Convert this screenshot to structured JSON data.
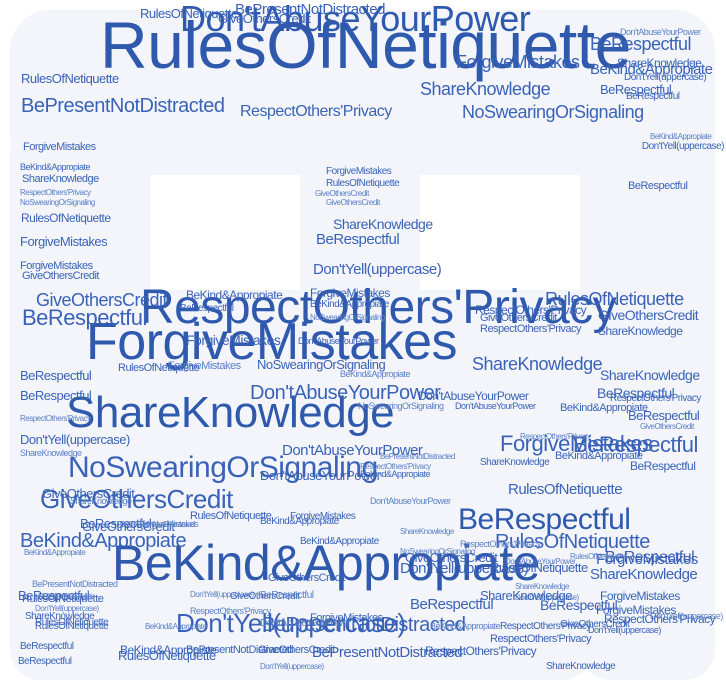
{
  "colors": {
    "background": "#ffffff",
    "silhouette": "#f3f5fb",
    "word_dark": "#2f59ad",
    "word_mid": "#3a63b8",
    "word_light": "#5a7fc6"
  },
  "icon": "handshake-silhouette-icon",
  "words": [
    {
      "id": "w1",
      "text": "RulesOfNetiquette"
    },
    {
      "id": "w2",
      "text": "RespectOthers'Privacy"
    },
    {
      "id": "w3",
      "text": "ForgiveMistakes"
    },
    {
      "id": "w4",
      "text": "BeKind&Appropiate"
    },
    {
      "id": "w5",
      "text": "ShareKnowledge"
    },
    {
      "id": "w6",
      "text": "Don'tAbuseYourPower"
    },
    {
      "id": "w7",
      "text": "NoSwearingOrSignaling"
    },
    {
      "id": "w8",
      "text": "GiveOthersCredit"
    },
    {
      "id": "w9",
      "text": "BeRespectful"
    },
    {
      "id": "w10",
      "text": "Don'tYell(uppercase)"
    },
    {
      "id": "w11",
      "text": "BePresentNotDistracted"
    },
    {
      "id": "w12",
      "text": "BePresentNotDistracted"
    },
    {
      "id": "w13",
      "text": "Don'tAbuseYourPower"
    },
    {
      "id": "w14",
      "text": "GiveOthersCredit"
    },
    {
      "id": "w15",
      "text": "BeKind&Appropiate"
    },
    {
      "id": "w16",
      "text": "RespectOthers'Privacy"
    },
    {
      "id": "w17",
      "text": "NoSwearingOrSignaling"
    },
    {
      "id": "w18",
      "text": "ForgiveMistakes"
    },
    {
      "id": "w19",
      "text": "ShareKnowledge"
    },
    {
      "id": "w20",
      "text": "RulesOfNetiquette"
    },
    {
      "id": "w21",
      "text": "BeRespectful"
    },
    {
      "id": "w22",
      "text": "RulesOfNetiquette"
    },
    {
      "id": "w23",
      "text": "RespectOthers'Privacy"
    },
    {
      "id": "w24",
      "text": "BeRespectful"
    },
    {
      "id": "w25",
      "text": "RulesOfNetiquette"
    },
    {
      "id": "w26",
      "text": "ForgiveMistakes"
    },
    {
      "id": "w27",
      "text": "ShareKnowledge"
    },
    {
      "id": "w28",
      "text": "BeRespectful"
    },
    {
      "id": "w29",
      "text": "GiveOthersCredit"
    },
    {
      "id": "w30",
      "text": "BeKind&Appropiate"
    },
    {
      "id": "w31",
      "text": "BePresentNotDistracted"
    },
    {
      "id": "w32",
      "text": "GiveOthersCredit"
    },
    {
      "id": "w33",
      "text": "Don'tAbuseYourPower"
    },
    {
      "id": "w34",
      "text": "BeRespectful"
    },
    {
      "id": "w35",
      "text": "ShareKnowledge"
    },
    {
      "id": "w36",
      "text": "Don'tYell(uppercase)"
    },
    {
      "id": "w37",
      "text": "RulesOfNetiquette"
    },
    {
      "id": "w38",
      "text": "ForgiveMistakes"
    },
    {
      "id": "w39",
      "text": "BeKind&Appropiate"
    },
    {
      "id": "w40",
      "text": "ShareKnowledge"
    },
    {
      "id": "w41",
      "text": "RulesOfNetiquette"
    },
    {
      "id": "w42",
      "text": "Don'tYell(uppercase)"
    },
    {
      "id": "w43",
      "text": "BeKind&Appropiate"
    },
    {
      "id": "w44",
      "text": "RespectOthers'Privacy"
    },
    {
      "id": "w45",
      "text": "ForgiveMistakes"
    },
    {
      "id": "w46",
      "text": "NoSwearingOrSignaling"
    },
    {
      "id": "w47",
      "text": "GiveOthersCredit"
    },
    {
      "id": "w48",
      "text": "ForgiveMistakes"
    },
    {
      "id": "w49",
      "text": "RulesOfNetiquette"
    },
    {
      "id": "w50",
      "text": "ShareKnowledge"
    },
    {
      "id": "w51",
      "text": "BeRespectful"
    },
    {
      "id": "w52",
      "text": "GiveOthersCredit"
    },
    {
      "id": "w53",
      "text": "Don'tYell(uppercase)"
    },
    {
      "id": "w54",
      "text": "BeRespectful"
    },
    {
      "id": "w55",
      "text": "Don'tAbuseYourPower"
    },
    {
      "id": "w56",
      "text": "BeKind&Appropiate"
    },
    {
      "id": "w57",
      "text": "RespectOthers'Privacy"
    },
    {
      "id": "w58",
      "text": "ShareKnowledge"
    },
    {
      "id": "w59",
      "text": "BeRespectful"
    },
    {
      "id": "w60",
      "text": "BeRespectful"
    },
    {
      "id": "w61",
      "text": "BeKind&Appropiate"
    },
    {
      "id": "w62",
      "text": "GiveOthersCredit"
    },
    {
      "id": "w63",
      "text": "BePresentNotDistracted"
    },
    {
      "id": "w64",
      "text": "RulesOfNetiquette"
    },
    {
      "id": "w65",
      "text": "BeRespectful"
    },
    {
      "id": "w66",
      "text": "ForgiveMistakes"
    },
    {
      "id": "w67",
      "text": "ShareKnowledge"
    },
    {
      "id": "w68",
      "text": "GiveOthersCredit"
    },
    {
      "id": "w69",
      "text": "NoSwearingOrSignaling"
    },
    {
      "id": "w70",
      "text": "Don'tAbuseYourPower"
    },
    {
      "id": "w71",
      "text": "RulesOfNetiquette"
    },
    {
      "id": "w72",
      "text": "BeKind&Appropiate"
    },
    {
      "id": "w73",
      "text": "GiveOthersCredit"
    },
    {
      "id": "w74",
      "text": "Don'tYell(uppercase)"
    },
    {
      "id": "w75",
      "text": "ShareKnowledge"
    },
    {
      "id": "w76",
      "text": "BeRespectful"
    },
    {
      "id": "w77",
      "text": "ForgiveMistakes"
    },
    {
      "id": "w78",
      "text": "RespectOthers'Privacy"
    },
    {
      "id": "w79",
      "text": "Don'tYell(uppercase)"
    },
    {
      "id": "w80",
      "text": "Don'tYell(uppercase)"
    },
    {
      "id": "w81",
      "text": "ShareKnowledge"
    },
    {
      "id": "w82",
      "text": "RulesOfNetiquette"
    },
    {
      "id": "w83",
      "text": "Don'tAbuseYourPower"
    },
    {
      "id": "w84",
      "text": "BeKind&Appropiate"
    },
    {
      "id": "w85",
      "text": "ForgiveMistakes"
    },
    {
      "id": "w86",
      "text": "BeRespectful"
    },
    {
      "id": "w87",
      "text": "ShareKnowledge"
    },
    {
      "id": "w88",
      "text": "BeRespectful"
    },
    {
      "id": "w89",
      "text": "ForgiveMistakes"
    },
    {
      "id": "w90",
      "text": "Don'tAbuseYourPower"
    },
    {
      "id": "w91",
      "text": "RespectOthers'Privacy"
    },
    {
      "id": "w92",
      "text": "BeKind&Appropiate"
    },
    {
      "id": "w93",
      "text": "RulesOfNetiquette"
    },
    {
      "id": "w94",
      "text": "Don'tAbuseYourPower"
    },
    {
      "id": "w95",
      "text": "BeRespectful"
    },
    {
      "id": "w96",
      "text": "ForgiveMistakes"
    },
    {
      "id": "w97",
      "text": "BeKind&Appropiate"
    },
    {
      "id": "w98",
      "text": "GiveOthersCredit"
    },
    {
      "id": "w99",
      "text": "RespectOthers'Privacy"
    },
    {
      "id": "w100",
      "text": "BeKind&Appropiate"
    },
    {
      "id": "w101",
      "text": "NoSwearingOrSignaling"
    },
    {
      "id": "w102",
      "text": "ShareKnowledge"
    },
    {
      "id": "w103",
      "text": "BeRespectful"
    },
    {
      "id": "w104",
      "text": "GiveOthersCredit"
    },
    {
      "id": "w105",
      "text": "RespectOthers'Privacy"
    },
    {
      "id": "w106",
      "text": "ForgiveMistakes"
    },
    {
      "id": "w107",
      "text": "NoSwearingOrSignaling"
    },
    {
      "id": "w108",
      "text": "RespectOthers'Privacy"
    },
    {
      "id": "w109",
      "text": "Don'tYell(uppercase)"
    },
    {
      "id": "w110",
      "text": "ShareKnowledge"
    },
    {
      "id": "w111",
      "text": "ForgiveMistakes"
    },
    {
      "id": "w112",
      "text": "RulesOfNetiquette"
    },
    {
      "id": "w113",
      "text": "BeRespectful"
    },
    {
      "id": "w114",
      "text": "GiveOthersCredit"
    },
    {
      "id": "w115",
      "text": "BePresentNotDistracted"
    },
    {
      "id": "w116",
      "text": "BeKind&Appropiate"
    },
    {
      "id": "w117",
      "text": "ShareKnowledge"
    },
    {
      "id": "w118",
      "text": "RespectOthers'Privacy"
    },
    {
      "id": "w119",
      "text": "NoSwearingOrSignaling"
    },
    {
      "id": "w120",
      "text": "Don'tAbuseYourPower"
    },
    {
      "id": "w121",
      "text": "BeRespectful"
    },
    {
      "id": "w122",
      "text": "BePresentNotDistracted"
    },
    {
      "id": "w123",
      "text": "RulesOfNetiquette"
    },
    {
      "id": "w124",
      "text": "Don'tYell(uppercase)"
    },
    {
      "id": "w125",
      "text": "BeKind&Appropiate"
    },
    {
      "id": "w126",
      "text": "RespectOthers'Privacy"
    },
    {
      "id": "w127",
      "text": "GiveOthersCredit"
    },
    {
      "id": "w128",
      "text": "ForgiveMistakes"
    },
    {
      "id": "w129",
      "text": "BeRespectful"
    },
    {
      "id": "w130",
      "text": "ShareKnowledge"
    },
    {
      "id": "w131",
      "text": "RulesOfNetiquette"
    },
    {
      "id": "w132",
      "text": "Don'tAbuseYourPower"
    },
    {
      "id": "w133",
      "text": "GiveOthersCredit"
    },
    {
      "id": "w134",
      "text": "BeRespectful"
    },
    {
      "id": "w135",
      "text": "RespectOthers'Privacy"
    },
    {
      "id": "w136",
      "text": "BeKind&Appropiate"
    },
    {
      "id": "w137",
      "text": "Don'tYell(uppercase)"
    },
    {
      "id": "w138",
      "text": "BeRespectful"
    },
    {
      "id": "w139",
      "text": "ShareKnowledge"
    },
    {
      "id": "w140",
      "text": "ForgiveMistakes"
    },
    {
      "id": "w141",
      "text": "RulesOfNetiquette"
    },
    {
      "id": "w142",
      "text": "Don'tYell(uppercase)"
    },
    {
      "id": "w143",
      "text": "ForgiveMistakes"
    },
    {
      "id": "w144",
      "text": "Don'tAbuseYourPower"
    },
    {
      "id": "w145",
      "text": "RulesOfNetiquette"
    },
    {
      "id": "w146",
      "text": "BeKind&Appropiate"
    },
    {
      "id": "w147",
      "text": "BeRespectful"
    },
    {
      "id": "w148",
      "text": "GiveOthersCredit"
    },
    {
      "id": "w149",
      "text": "RespectOthers'Privacy"
    },
    {
      "id": "w150",
      "text": "BePresentNotDistracted"
    },
    {
      "id": "w151",
      "text": "ShareKnowledge"
    },
    {
      "id": "w152",
      "text": "Don'tYell(uppercase)"
    },
    {
      "id": "w153",
      "text": "GiveOthersCredit"
    },
    {
      "id": "w154",
      "text": "RespectOthers'Privacy"
    },
    {
      "id": "w155",
      "text": "BeKind&Appropiate"
    },
    {
      "id": "w156",
      "text": "BePresentNotDistracted"
    },
    {
      "id": "w157",
      "text": "RulesOfNetiquette"
    },
    {
      "id": "w158",
      "text": "BeRespectful"
    }
  ]
}
